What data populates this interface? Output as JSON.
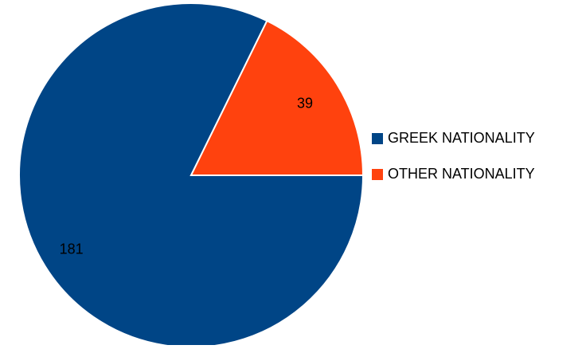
{
  "chart_data": {
    "type": "pie",
    "title": "",
    "slices": [
      {
        "label": "GREEK NATIONALITY",
        "value": 181,
        "color": "#004586"
      },
      {
        "label": "OTHER NATIONALITY",
        "value": 39,
        "color": "#FF420E"
      }
    ],
    "legend_position": "right",
    "start_angle_deg": 0,
    "direction": "counterclockwise-from-right-for-first-slice-end"
  }
}
